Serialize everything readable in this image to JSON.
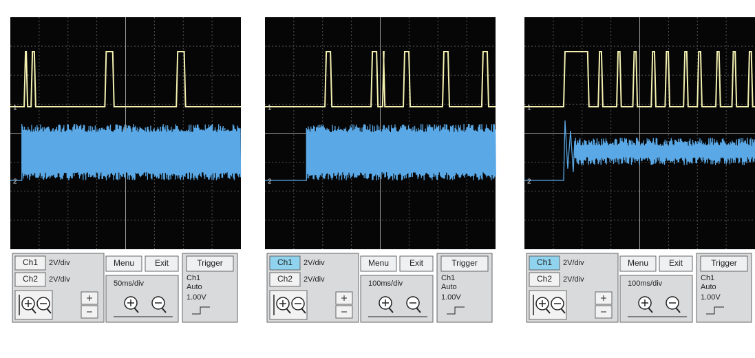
{
  "panels": [
    {
      "markers": {
        "ch1": "1",
        "ch2": "2"
      },
      "controls": {
        "ch1": {
          "label": "Ch1",
          "scale": "2V/div"
        },
        "ch2": {
          "label": "Ch2",
          "scale": "2V/div"
        },
        "menu": "Menu",
        "exit": "Exit",
        "trigger": "Trigger",
        "timebase": "50ms/div",
        "trigger_source": "Ch1",
        "trigger_mode": "Auto",
        "trigger_level": "1.00V"
      }
    },
    {
      "markers": {
        "ch1": "1",
        "ch2": "2"
      },
      "controls": {
        "ch1": {
          "label": "Ch1",
          "scale": "2V/div"
        },
        "ch2": {
          "label": "Ch2",
          "scale": "2V/div"
        },
        "menu": "Menu",
        "exit": "Exit",
        "trigger": "Trigger",
        "timebase": "100ms/div",
        "trigger_source": "Ch1",
        "trigger_mode": "Auto",
        "trigger_level": "1.00V"
      }
    },
    {
      "markers": {
        "ch1": "1",
        "ch2": "2"
      },
      "controls": {
        "ch1": {
          "label": "Ch1",
          "scale": "2V/div"
        },
        "ch2": {
          "label": "Ch2",
          "scale": "2V/div"
        },
        "menu": "Menu",
        "exit": "Exit",
        "trigger": "Trigger",
        "timebase": "100ms/div",
        "trigger_source": "Ch1",
        "trigger_mode": "Auto",
        "trigger_level": "1.00V"
      }
    }
  ]
}
